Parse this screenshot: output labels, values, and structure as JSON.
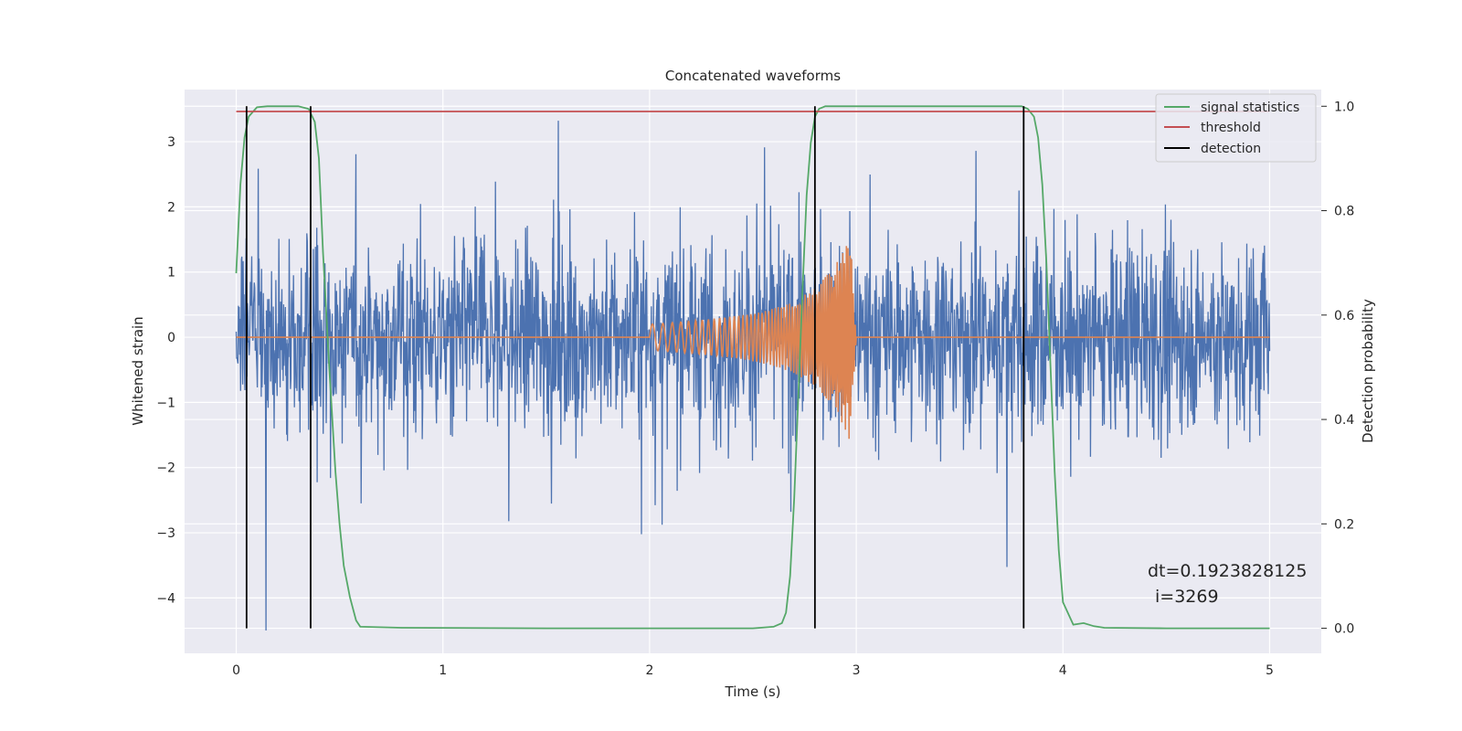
{
  "chart_data": {
    "type": "line",
    "title": "Concatenated waveforms",
    "xlabel": "Time (s)",
    "ylabel": "Whitened strain",
    "y2label": "Detection probability",
    "xlim": [
      -0.25,
      5.25
    ],
    "ylim": [
      -4.85,
      3.8
    ],
    "y2lim": [
      -0.048,
      1.032
    ],
    "xticks": [
      0,
      1,
      2,
      3,
      4,
      5
    ],
    "yticks": [
      -4,
      -3,
      -2,
      -1,
      0,
      1,
      2,
      3
    ],
    "y2ticks": [
      0.0,
      0.2,
      0.4,
      0.6,
      0.8,
      1.0
    ],
    "xtick_labels": [
      "0",
      "1",
      "2",
      "3",
      "4",
      "5"
    ],
    "ytick_labels": [
      "−4",
      "−3",
      "−2",
      "−1",
      "0",
      "1",
      "2",
      "3"
    ],
    "y2tick_labels": [
      "0.0",
      "0.2",
      "0.4",
      "0.6",
      "0.8",
      "1.0"
    ],
    "grid": true,
    "legend_position": "top-right",
    "colors": {
      "strain": "#4c72b0",
      "injected": "#dd8452",
      "signal_statistics": "#55a868",
      "threshold": "#c44e52",
      "detection": "#000000",
      "plot_background": "#eaeaf2",
      "grid": "#ffffff"
    },
    "series": [
      {
        "name": "signal statistics",
        "axis": "right",
        "x": [
          0.0,
          0.02,
          0.04,
          0.06,
          0.1,
          0.15,
          0.2,
          0.3,
          0.35,
          0.38,
          0.4,
          0.42,
          0.45,
          0.48,
          0.5,
          0.52,
          0.55,
          0.58,
          0.6,
          0.8,
          1.5,
          2.0,
          2.5,
          2.6,
          2.64,
          2.66,
          2.68,
          2.7,
          2.72,
          2.74,
          2.76,
          2.78,
          2.8,
          2.82,
          2.85,
          2.9,
          3.0,
          3.5,
          3.8,
          3.83,
          3.86,
          3.88,
          3.9,
          3.92,
          3.94,
          3.96,
          3.98,
          4.0,
          4.05,
          4.1,
          4.15,
          4.2,
          4.5,
          5.0
        ],
        "y": [
          0.68,
          0.85,
          0.94,
          0.98,
          0.998,
          1.0,
          1.0,
          1.0,
          0.995,
          0.97,
          0.9,
          0.72,
          0.5,
          0.3,
          0.2,
          0.12,
          0.06,
          0.015,
          0.003,
          0.001,
          0.0,
          0.0,
          0.0,
          0.003,
          0.01,
          0.03,
          0.1,
          0.25,
          0.45,
          0.65,
          0.83,
          0.93,
          0.98,
          0.995,
          1.0,
          1.0,
          1.0,
          1.0,
          1.0,
          0.995,
          0.98,
          0.94,
          0.85,
          0.7,
          0.5,
          0.3,
          0.15,
          0.05,
          0.007,
          0.01,
          0.004,
          0.001,
          0.0,
          0.0
        ]
      },
      {
        "name": "threshold",
        "axis": "right",
        "x": [
          0.0,
          5.0
        ],
        "y": [
          0.99,
          0.99
        ]
      },
      {
        "name": "detection",
        "axis": "right",
        "x": [
          0.05,
          0.36,
          2.8,
          3.81
        ],
        "y_range": [
          0.0,
          1.0
        ]
      },
      {
        "axis": "left",
        "x_range": [
          0,
          5
        ],
        "amplitude_envelope": 3.4,
        "note_color": "strain"
      },
      {
        "axis": "left",
        "x": [
          0.0,
          2.0,
          2.1,
          2.2,
          2.3,
          2.4,
          2.5,
          2.6,
          2.7,
          2.8,
          2.9,
          2.97,
          3.0,
          5.0
        ],
        "envelope_amplitude": [
          0.0,
          0.2,
          0.22,
          0.25,
          0.28,
          0.32,
          0.37,
          0.44,
          0.55,
          0.75,
          1.1,
          1.6,
          0.0,
          0.0
        ],
        "note_color": "injected"
      }
    ],
    "annotation": {
      "line1": "dt=0.1923828125",
      "line2": "i=3269",
      "x": 4.5,
      "y": -3.6
    }
  },
  "legend": {
    "items": [
      {
        "label": "signal statistics",
        "color": "#55a868"
      },
      {
        "label": "threshold",
        "color": "#c44e52"
      },
      {
        "label": "detection",
        "color": "#000000"
      }
    ]
  }
}
